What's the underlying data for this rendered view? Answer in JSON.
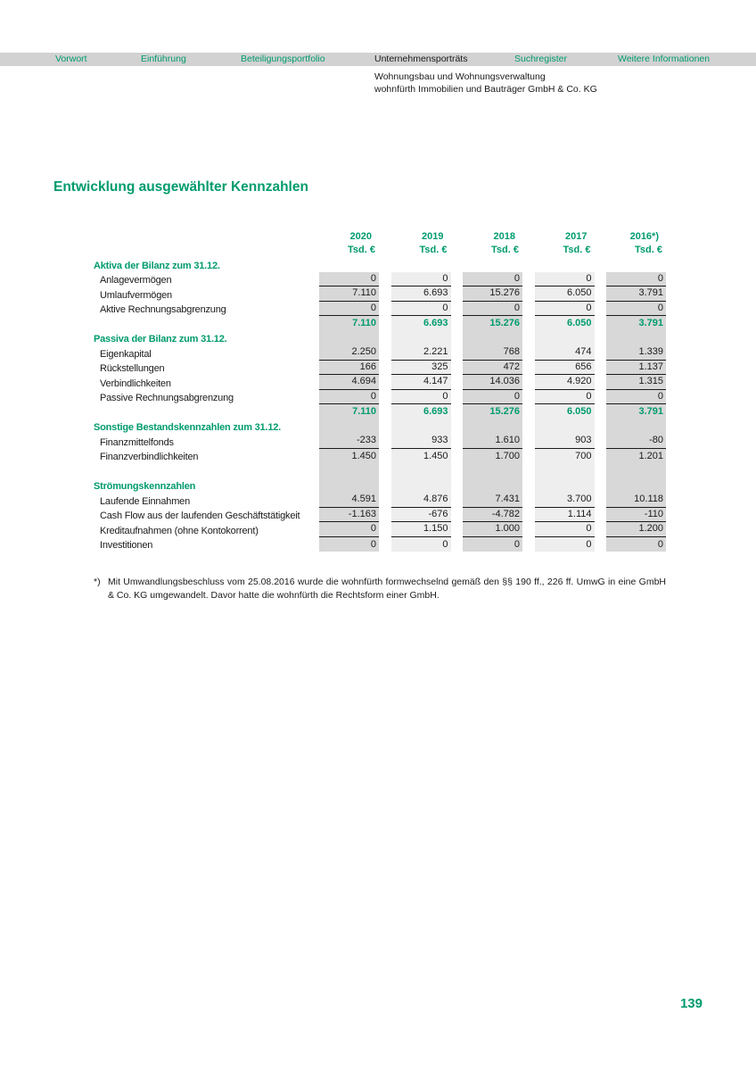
{
  "colors": {
    "accent": "#009b6e",
    "nav_strip": "#d2d2d2",
    "band_dark": "#d8d8d8",
    "band_light": "#eeeeee"
  },
  "nav": {
    "items": [
      {
        "label": "Vorwort",
        "active": false
      },
      {
        "label": "Einführung",
        "active": false
      },
      {
        "label": "Beteiligungsportfolio",
        "active": false
      },
      {
        "label": "Unternehmensporträts",
        "active": true
      },
      {
        "label": "Suchregister",
        "active": false
      },
      {
        "label": "Weitere Informationen",
        "active": false
      }
    ]
  },
  "header": {
    "line1": "Wohnungsbau und Wohnungsverwaltung",
    "line2": "wohnfürth Immobilien und Bauträger GmbH & Co. KG"
  },
  "title": "Entwicklung ausgewählter Kennzahlen",
  "table": {
    "columns": [
      "2020",
      "2019",
      "2018",
      "2017",
      "2016*)"
    ],
    "unit": "Tsd. €",
    "sections": [
      {
        "header": "Aktiva der Bilanz zum 31.12.",
        "rows": [
          {
            "label": "Anlagevermögen",
            "values": [
              "0",
              "0",
              "0",
              "0",
              "0"
            ],
            "underline": true,
            "total": false
          },
          {
            "label": "Umlaufvermögen",
            "values": [
              "7.110",
              "6.693",
              "15.276",
              "6.050",
              "3.791"
            ],
            "underline": true,
            "total": false
          },
          {
            "label": "Aktive Rechnungsabgrenzung",
            "values": [
              "0",
              "0",
              "0",
              "0",
              "0"
            ],
            "underline": true,
            "total": false
          },
          {
            "label": "",
            "values": [
              "7.110",
              "6.693",
              "15.276",
              "6.050",
              "3.791"
            ],
            "underline": false,
            "total": true
          }
        ]
      },
      {
        "header": "Passiva der Bilanz zum 31.12.",
        "rows": [
          {
            "label": "Eigenkapital",
            "values": [
              "2.250",
              "2.221",
              "768",
              "474",
              "1.339"
            ],
            "underline": true,
            "total": false
          },
          {
            "label": "Rückstellungen",
            "values": [
              "166",
              "325",
              "472",
              "656",
              "1.137"
            ],
            "underline": true,
            "total": false
          },
          {
            "label": "Verbindlichkeiten",
            "values": [
              "4.694",
              "4.147",
              "14.036",
              "4.920",
              "1.315"
            ],
            "underline": true,
            "total": false
          },
          {
            "label": "Passive Rechnungsabgrenzung",
            "values": [
              "0",
              "0",
              "0",
              "0",
              "0"
            ],
            "underline": true,
            "total": false
          },
          {
            "label": "",
            "values": [
              "7.110",
              "6.693",
              "15.276",
              "6.050",
              "3.791"
            ],
            "underline": false,
            "total": true
          }
        ]
      },
      {
        "header": "Sonstige Bestandskennzahlen zum 31.12.",
        "rows": [
          {
            "label": "Finanzmittelfonds",
            "values": [
              "-233",
              "933",
              "1.610",
              "903",
              "-80"
            ],
            "underline": true,
            "total": false
          },
          {
            "label": "Finanzverbindlichkeiten",
            "values": [
              "1.450",
              "1.450",
              "1.700",
              "700",
              "1.201"
            ],
            "underline": false,
            "total": false
          }
        ]
      },
      {
        "header": "Strömungskennzahlen",
        "spacer_before": true,
        "rows": [
          {
            "label": "Laufende Einnahmen",
            "values": [
              "4.591",
              "4.876",
              "7.431",
              "3.700",
              "10.118"
            ],
            "underline": true,
            "total": false
          },
          {
            "label": "Cash Flow aus der laufenden Geschäftstätigkeit",
            "values": [
              "-1.163",
              "-676",
              "-4.782",
              "1.114",
              "-110"
            ],
            "underline": true,
            "total": false
          },
          {
            "label": "Kreditaufnahmen (ohne Kontokorrent)",
            "values": [
              "0",
              "1.150",
              "1.000",
              "0",
              "1.200"
            ],
            "underline": true,
            "total": false
          },
          {
            "label": "Investitionen",
            "values": [
              "0",
              "0",
              "0",
              "0",
              "0"
            ],
            "underline": false,
            "total": false
          }
        ]
      }
    ]
  },
  "footnote": {
    "marker": "*)",
    "text": "Mit Umwandlungsbeschluss vom 25.08.2016 wurde die wohnfürth formwechselnd gemäß den §§ 190 ff., 226 ff. UmwG in eine GmbH & Co. KG umgewandelt. Davor hatte die wohnfürth die Rechtsform einer GmbH."
  },
  "page_number": "139"
}
